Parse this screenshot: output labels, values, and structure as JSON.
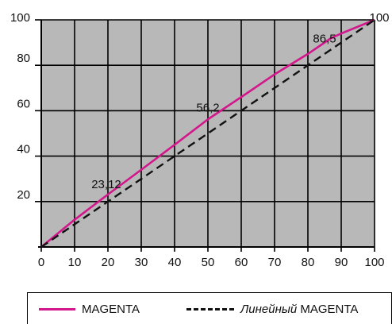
{
  "chart_data": {
    "type": "line",
    "x_ticks": [
      0,
      10,
      20,
      30,
      40,
      50,
      60,
      70,
      80,
      90,
      100
    ],
    "y_ticks": [
      20,
      40,
      60,
      80,
      100
    ],
    "xlim": [
      0,
      100
    ],
    "ylim": [
      0,
      100
    ],
    "grid": true,
    "plot_background": "#b8b8b8",
    "series": [
      {
        "name": "MAGENTA",
        "color": "#d4168c",
        "style": "solid",
        "x": [
          0,
          10,
          20,
          30,
          40,
          50,
          60,
          70,
          80,
          87,
          90,
          100
        ],
        "y": [
          0,
          12,
          23.12,
          34,
          45,
          56.2,
          66,
          76,
          85,
          92,
          94,
          100
        ]
      },
      {
        "name_italic": "Линейный",
        "name_plain": "MAGENTA",
        "color": "#111111",
        "style": "dashed",
        "x": [
          0,
          100
        ],
        "y": [
          0,
          100
        ]
      }
    ],
    "annotations": [
      {
        "text": "23,12",
        "x": 20,
        "y": 23.12
      },
      {
        "text": "56,2",
        "x": 50,
        "y": 56.2
      },
      {
        "text": "86,5",
        "x": 85,
        "y": 86.5
      },
      {
        "text": "100",
        "x": 100,
        "y": 100
      }
    ]
  }
}
